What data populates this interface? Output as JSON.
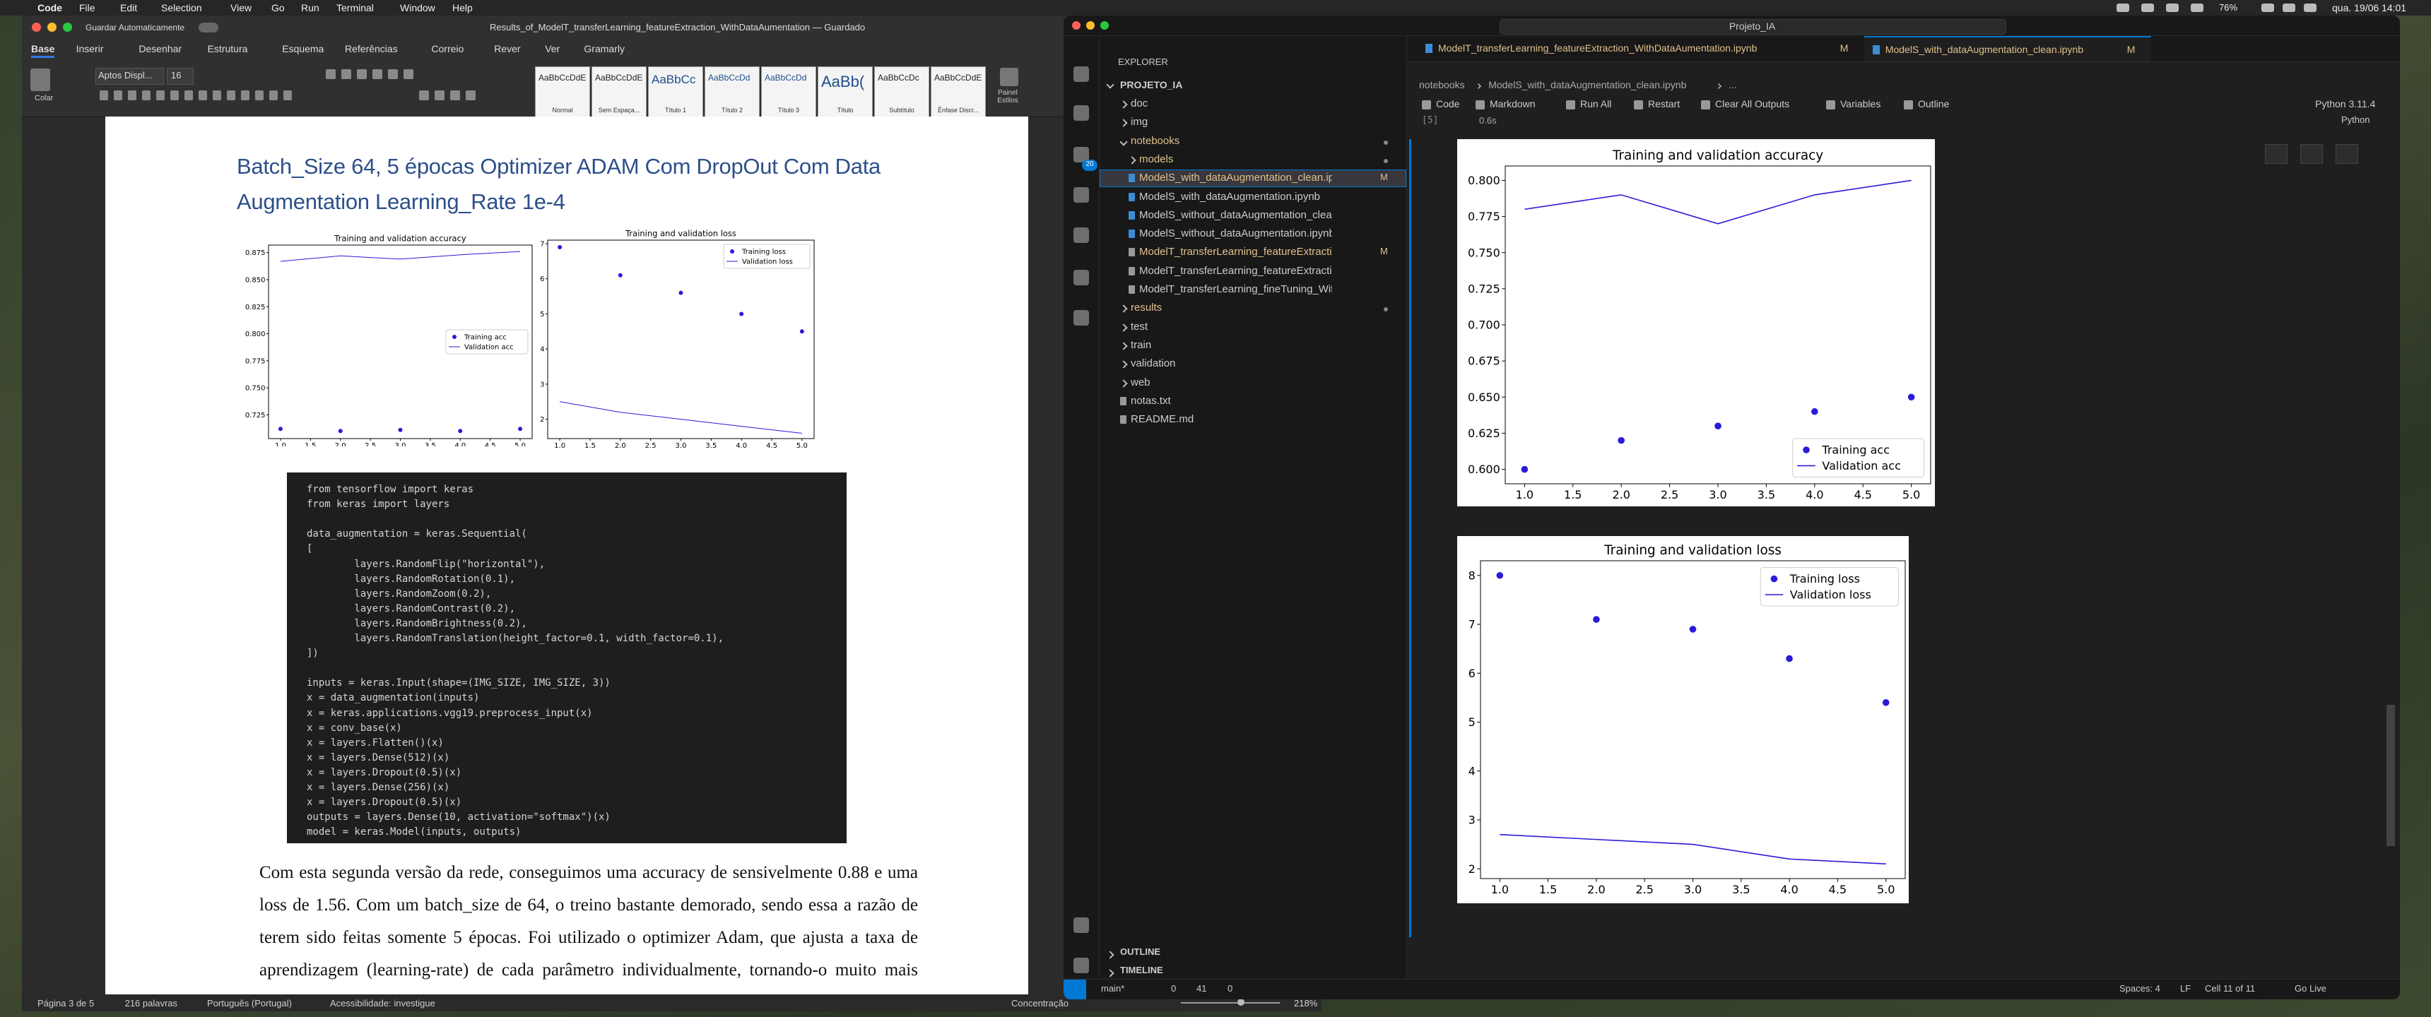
{
  "menubar": {
    "app": "Code",
    "items": [
      "File",
      "Edit",
      "Selection",
      "View",
      "Go",
      "Run",
      "Terminal",
      "Window",
      "Help"
    ],
    "battery": "76%",
    "clock": "qua. 19/06  14:01"
  },
  "word": {
    "autosave": "Guardar Automaticamente",
    "title": "Results_of_ModelT_transferLearning_featureExtraction_WithDataAumentation — Guardado",
    "tabs": [
      "Base",
      "Inserir",
      "Desenhar",
      "Estrutura",
      "Esquema",
      "Referências",
      "Correio",
      "Rever",
      "Ver",
      "Gramarly"
    ],
    "paste": "Colar",
    "font": "Aptos Displ...",
    "font_size": "16",
    "styles": [
      {
        "sample": "AaBbCcDdEe",
        "name": "Normal"
      },
      {
        "sample": "AaBbCcDdEe",
        "name": "Sem Espaça..."
      },
      {
        "sample": "AaBbCc",
        "name": "Título 1"
      },
      {
        "sample": "AaBbCcDd",
        "name": "Título 2"
      },
      {
        "sample": "AaBbCcDd",
        "name": "Título 3"
      },
      {
        "sample": "AaBb(",
        "name": "Título"
      },
      {
        "sample": "AaBbCcDc",
        "name": "Subtítulo"
      },
      {
        "sample": "AaBbCcDdE",
        "name": "Ênfase Discr..."
      }
    ],
    "styles_pane": "Painel Estilos",
    "heading": "Batch_Size 64, 5 épocas Optimizer ADAM Com DropOut Com Data Augmentation Learning_Rate 1e-4",
    "charts": [
      {
        "type": "line",
        "title": "Training and validation accuracy",
        "legend": "center right",
        "x": [
          1,
          2,
          3,
          4,
          5
        ],
        "xlim": [
          0.8,
          5.2
        ],
        "xticks": [
          {
            "value": 1,
            "label": "1.0"
          },
          {
            "value": 1.5,
            "label": "1.5"
          },
          {
            "value": 2,
            "label": "2.0"
          },
          {
            "value": 2.5,
            "label": "2.5"
          },
          {
            "value": 3,
            "label": "3.0"
          },
          {
            "value": 3.5,
            "label": "3.5"
          },
          {
            "value": 4,
            "label": "4.0"
          },
          {
            "value": 4.5,
            "label": "4.5"
          },
          {
            "value": 5,
            "label": "5.0"
          }
        ],
        "ylim": [
          0.703,
          0.882
        ],
        "yticks": [
          0.725,
          {
            "value": 0.75,
            "label": "0.750"
          },
          0.775,
          {
            "value": 0.8,
            "label": "0.800"
          },
          0.825,
          {
            "value": 0.85,
            "label": "0.850"
          },
          0.875
        ],
        "series": [
          {
            "name": "Training acc",
            "color": "#2b1bd8",
            "marker": "dot",
            "values": [
              0.712,
              0.71,
              0.711,
              0.71,
              0.712
            ]
          },
          {
            "name": "Validation acc",
            "color": "#2b1bd8",
            "marker": "line",
            "values": [
              0.867,
              0.872,
              0.869,
              0.873,
              0.876
            ]
          }
        ]
      },
      {
        "type": "line",
        "title": "Training and validation loss",
        "legend": "upper right",
        "x": [
          1,
          2,
          3,
          4,
          5
        ],
        "xlim": [
          0.8,
          5.2
        ],
        "xticks": [
          {
            "value": 1,
            "label": "1.0"
          },
          {
            "value": 1.5,
            "label": "1.5"
          },
          {
            "value": 2,
            "label": "2.0"
          },
          {
            "value": 2.5,
            "label": "2.5"
          },
          {
            "value": 3,
            "label": "3.0"
          },
          {
            "value": 3.5,
            "label": "3.5"
          },
          {
            "value": 4,
            "label": "4.0"
          },
          {
            "value": 4.5,
            "label": "4.5"
          },
          {
            "value": 5,
            "label": "5.0"
          }
        ],
        "ylim": [
          1.45,
          7.1
        ],
        "yticks": [
          2,
          3,
          4,
          5,
          6,
          7
        ],
        "series": [
          {
            "name": "Training loss",
            "color": "#2b1bd8",
            "marker": "dot",
            "values": [
              6.9,
              6.1,
              5.6,
              5.0,
              4.5
            ]
          },
          {
            "name": "Validation loss",
            "color": "#2b1bd8",
            "marker": "line",
            "values": [
              2.5,
              2.2,
              2.0,
              1.8,
              1.6
            ]
          }
        ]
      }
    ],
    "code": [
      [
        "from tensorflow import keras",
        "from keras import layers"
      ],
      [
        "data_augmentation = keras.Sequential(",
        "[",
        "        layers.RandomFlip(\"horizontal\"),",
        "        layers.RandomRotation(0.1),",
        "        layers.RandomZoom(0.2),",
        "        layers.RandomContrast(0.2),",
        "        layers.RandomBrightness(0.2),",
        "        layers.RandomTranslation(height_factor=0.1, width_factor=0.1),",
        "])"
      ],
      [
        "inputs = keras.Input(shape=(IMG_SIZE, IMG_SIZE, 3))",
        "x = data_augmentation(inputs)",
        "x = keras.applications.vgg19.preprocess_input(x)",
        "x = conv_base(x)",
        "x = layers.Flatten()(x)",
        "x = layers.Dense(512)(x)",
        "x = layers.Dropout(0.5)(x)",
        "x = layers.Dense(256)(x)",
        "x = layers.Dropout(0.5)(x)",
        "outputs = layers.Dense(10, activation=\"softmax\")(x)",
        "model = keras.Model(inputs, outputs)"
      ]
    ],
    "paragraph": "Com esta segunda versão da rede, conseguimos uma accuracy de sensivelmente 0.88 e uma loss de 1.56. Com um batch_size de 64, o treino bastante demorado, sendo essa a razão de terem sido feitas somente 5 épocas. Foi utilizado o optimizer Adam, que ajusta a taxa de aprendizagem (learning-rate) de cada parâmetro individualmente, tornando-o muito mais eficaz em situações onde a escala dos gradientes varia. Foi utilizado data",
    "status": [
      "Página 3 de 5",
      "216 palavras",
      "Português (Portugal)",
      "Acessibilidade: investigue"
    ],
    "focus": "Concentração",
    "zoom": "218%"
  },
  "vscode": {
    "search": "Projeto_IA",
    "scm_badge": "20",
    "explorer": "EXPLORER",
    "project": "PROJETO_IA",
    "tree": [
      {
        "label": "doc",
        "depth": 0,
        "folder": true
      },
      {
        "label": "img",
        "depth": 0,
        "folder": true
      },
      {
        "label": "notebooks",
        "depth": 0,
        "folder": true,
        "color": "#e2c08d"
      },
      {
        "label": "models",
        "depth": 1,
        "folder": true,
        "color": "#e2c08d"
      },
      {
        "label": "ModelS_with_dataAugmentation_clean.ipynb",
        "depth": 1,
        "status": "M",
        "color": "#e2c08d",
        "selected": true
      },
      {
        "label": "ModelS_with_dataAugmentation.ipynb",
        "depth": 1
      },
      {
        "label": "ModelS_without_dataAugmentation_clean.ipynb",
        "depth": 1
      },
      {
        "label": "ModelS_without_dataAugmentation.ipynb",
        "depth": 1
      },
      {
        "label": "ModelT_transferLearning_featureExtraction_...",
        "depth": 1,
        "status": "M",
        "color": "#e2c08d"
      },
      {
        "label": "ModelT_transferLearning_featureExtraction_With...",
        "depth": 1
      },
      {
        "label": "ModelT_transferLearning_fineTuning_WithoutDat...",
        "depth": 1
      },
      {
        "label": "results",
        "depth": 0,
        "folder": true,
        "color": "#e2c08d"
      },
      {
        "label": "test",
        "depth": 0,
        "folder": true
      },
      {
        "label": "train",
        "depth": 0,
        "folder": true
      },
      {
        "label": "validation",
        "depth": 0,
        "folder": true
      },
      {
        "label": "web",
        "depth": 0,
        "folder": true
      },
      {
        "label": "notas.txt",
        "depth": 0
      },
      {
        "label": "README.md",
        "depth": 0
      }
    ],
    "panels": [
      "OUTLINE",
      "TIMELINE"
    ],
    "tabs": [
      {
        "name": "ModelT_transferLearning_featureExtraction_WithDataAumentation.ipynb",
        "status": "M"
      },
      {
        "name": "ModelS_with_dataAugmentation_clean.ipynb",
        "status": "M",
        "active": true
      }
    ],
    "breadcrumb": [
      "notebooks",
      "ModelS_with_dataAugmentation_clean.ipynb",
      "..."
    ],
    "toolbar": [
      "Code",
      "Markdown",
      "Run All",
      "Restart",
      "Clear All Outputs",
      "Variables",
      "Outline"
    ],
    "kernel": "Python 3.11.4",
    "language": "Python",
    "cell_index": "[5]",
    "cell_time": "0.6s",
    "charts": [
      {
        "type": "line",
        "title": "Training and validation accuracy",
        "legend": "lower right",
        "x": [
          1,
          2,
          3,
          4,
          5
        ],
        "xlim": [
          0.8,
          5.2
        ],
        "xticks": [
          {
            "value": 1,
            "label": "1.0"
          },
          {
            "value": 1.5,
            "label": "1.5"
          },
          {
            "value": 2,
            "label": "2.0"
          },
          {
            "value": 2.5,
            "label": "2.5"
          },
          {
            "value": 3,
            "label": "3.0"
          },
          {
            "value": 3.5,
            "label": "3.5"
          },
          {
            "value": 4,
            "label": "4.0"
          },
          {
            "value": 4.5,
            "label": "4.5"
          },
          {
            "value": 5,
            "label": "5.0"
          }
        ],
        "ylim": [
          0.59,
          0.81
        ],
        "yticks": [
          {
            "value": 0.6,
            "label": "0.600"
          },
          0.625,
          {
            "value": 0.65,
            "label": "0.650"
          },
          0.675,
          {
            "value": 0.7,
            "label": "0.700"
          },
          0.725,
          {
            "value": 0.75,
            "label": "0.750"
          },
          0.775,
          {
            "value": 0.8,
            "label": "0.800"
          }
        ],
        "series": [
          {
            "name": "Training acc",
            "color": "#2b1bd8",
            "marker": "dot",
            "values": [
              0.6,
              0.62,
              0.63,
              0.64,
              0.65
            ]
          },
          {
            "name": "Validation acc",
            "color": "#2b1bd8",
            "marker": "line",
            "values": [
              0.78,
              0.79,
              0.77,
              0.79,
              0.8
            ]
          }
        ]
      },
      {
        "type": "line",
        "title": "Training and validation loss",
        "legend": "upper right",
        "x": [
          1,
          2,
          3,
          4,
          5
        ],
        "xlim": [
          0.8,
          5.2
        ],
        "xticks": [
          {
            "value": 1,
            "label": "1.0"
          },
          {
            "value": 1.5,
            "label": "1.5"
          },
          {
            "value": 2,
            "label": "2.0"
          },
          {
            "value": 2.5,
            "label": "2.5"
          },
          {
            "value": 3,
            "label": "3.0"
          },
          {
            "value": 3.5,
            "label": "3.5"
          },
          {
            "value": 4,
            "label": "4.0"
          },
          {
            "value": 4.5,
            "label": "4.5"
          },
          {
            "value": 5,
            "label": "5.0"
          }
        ],
        "ylim": [
          1.8,
          8.3
        ],
        "yticks": [
          2,
          3,
          4,
          5,
          6,
          7,
          8
        ],
        "series": [
          {
            "name": "Training loss",
            "color": "#2b1bd8",
            "marker": "dot",
            "values": [
              8.0,
              7.1,
              6.9,
              6.3,
              5.4
            ]
          },
          {
            "name": "Validation loss",
            "color": "#2b1bd8",
            "marker": "line",
            "values": [
              2.7,
              2.6,
              2.5,
              2.2,
              2.1
            ]
          }
        ]
      }
    ],
    "status_left": [
      "main*",
      "0",
      "41",
      "0"
    ],
    "status_right": [
      "Spaces: 4",
      "LF",
      "Cell 11 of 11",
      "Go Live"
    ]
  }
}
